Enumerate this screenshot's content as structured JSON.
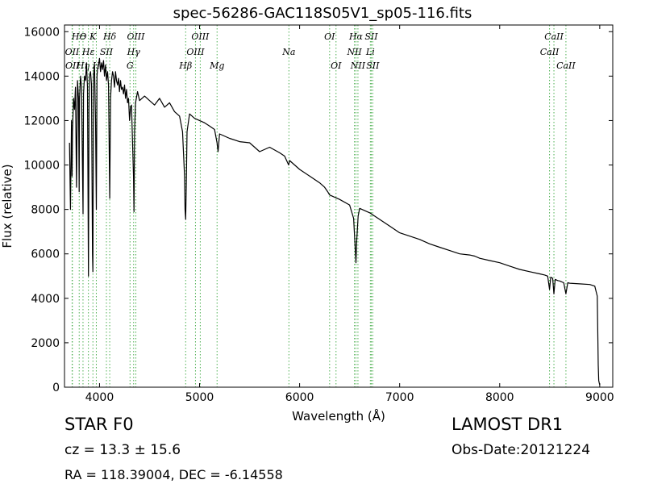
{
  "chart_data": {
    "type": "line",
    "title": "spec-56286-GAC118S05V1_sp05-116.fits",
    "xlabel": "Wavelength (Å)",
    "ylabel": "Flux (relative)",
    "xlim": [
      3650,
      9130
    ],
    "ylim": [
      0,
      16300
    ],
    "xticks": [
      4000,
      5000,
      6000,
      7000,
      8000,
      9000
    ],
    "yticks": [
      0,
      2000,
      4000,
      6000,
      8000,
      10000,
      12000,
      14000,
      16000
    ],
    "grid": false,
    "line_color": "#000000",
    "marker_line_color": "#4caf50",
    "series": [
      {
        "x": [
          3700,
          3710,
          3720,
          3726,
          3730,
          3740,
          3750,
          3760,
          3770,
          3780,
          3790,
          3797,
          3800,
          3810,
          3820,
          3835,
          3840,
          3850,
          3860,
          3870,
          3880,
          3889,
          3895,
          3900,
          3910,
          3920,
          3930,
          3934,
          3940,
          3950,
          3960,
          3968,
          3975,
          3980,
          3990,
          4000,
          4010,
          4020,
          4030,
          4040,
          4050,
          4060,
          4070,
          4080,
          4090,
          4102,
          4110,
          4120,
          4130,
          4140,
          4150,
          4160,
          4170,
          4180,
          4190,
          4200,
          4210,
          4220,
          4230,
          4240,
          4250,
          4260,
          4270,
          4280,
          4290,
          4300,
          4310,
          4320,
          4330,
          4340,
          4345,
          4350,
          4360,
          4380,
          4400,
          4450,
          4500,
          4550,
          4600,
          4650,
          4700,
          4750,
          4800,
          4830,
          4850,
          4855,
          4861,
          4867,
          4875,
          4900,
          4950,
          5000,
          5050,
          5100,
          5150,
          5175,
          5185,
          5200,
          5300,
          5400,
          5500,
          5600,
          5700,
          5800,
          5850,
          5890,
          5900,
          5950,
          6000,
          6100,
          6200,
          6250,
          6280,
          6300,
          6400,
          6500,
          6540,
          6555,
          6563,
          6570,
          6585,
          6600,
          6700,
          6800,
          6900,
          7000,
          7100,
          7200,
          7300,
          7400,
          7500,
          7600,
          7700,
          7750,
          7800,
          7900,
          8000,
          8100,
          8200,
          8300,
          8400,
          8450,
          8480,
          8498,
          8510,
          8530,
          8542,
          8555,
          8580,
          8600,
          8640,
          8662,
          8680,
          8700,
          8800,
          8900,
          8950,
          8975,
          8985,
          8990,
          8995,
          9000
        ],
        "y": [
          11000,
          8000,
          12000,
          9500,
          11500,
          13000,
          12500,
          13500,
          9000,
          13800,
          13000,
          8800,
          13000,
          14000,
          13500,
          7800,
          13200,
          14000,
          13800,
          14600,
          13500,
          5000,
          12500,
          14000,
          14200,
          13600,
          6000,
          5200,
          14000,
          14500,
          12000,
          8000,
          14000,
          14300,
          14500,
          14800,
          14200,
          14600,
          14300,
          14700,
          14000,
          14500,
          13800,
          14200,
          13600,
          8500,
          13000,
          13800,
          14200,
          14000,
          13500,
          14200,
          13800,
          13600,
          13900,
          13300,
          13800,
          13400,
          13500,
          13200,
          13600,
          13000,
          13400,
          12800,
          13000,
          12000,
          12600,
          12700,
          11000,
          9500,
          7900,
          11500,
          12800,
          13300,
          12900,
          13100,
          12900,
          12700,
          13000,
          12600,
          12800,
          12400,
          12200,
          11500,
          9500,
          8000,
          7550,
          9000,
          11500,
          12300,
          12100,
          12000,
          11900,
          11750,
          11600,
          11000,
          10600,
          11400,
          11200,
          11050,
          11000,
          10600,
          10800,
          10550,
          10400,
          10000,
          10200,
          10000,
          9800,
          9500,
          9200,
          9000,
          8800,
          8650,
          8450,
          8200,
          7600,
          6300,
          5600,
          6500,
          7700,
          8050,
          7850,
          7550,
          7250,
          6950,
          6800,
          6650,
          6450,
          6300,
          6150,
          6000,
          5950,
          5900,
          5800,
          5700,
          5600,
          5450,
          5300,
          5200,
          5100,
          5050,
          5000,
          4400,
          4950,
          4900,
          4200,
          4850,
          4800,
          4780,
          4700,
          4200,
          4700,
          4680,
          4650,
          4620,
          4550,
          4100,
          1000,
          300,
          200,
          100
        ]
      }
    ],
    "line_markers": [
      {
        "label": "HΘ",
        "x": 3797,
        "row": "top"
      },
      {
        "label": "OII",
        "x": 3726,
        "row": "mid"
      },
      {
        "label": "OII",
        "x": 3729,
        "row": "low"
      },
      {
        "label": "Hη",
        "x": 3835,
        "row": "low"
      },
      {
        "label": "K",
        "x": 3934,
        "row": "top"
      },
      {
        "label": "Hε",
        "x": 3889,
        "row": "mid"
      },
      {
        "label": "H",
        "x": 3968,
        "row": "low"
      },
      {
        "label": "SII",
        "x": 4069,
        "row": "mid"
      },
      {
        "label": "Hδ",
        "x": 4102,
        "row": "top"
      },
      {
        "label": "OIII",
        "x": 4363,
        "row": "top"
      },
      {
        "label": "Hγ",
        "x": 4341,
        "row": "mid"
      },
      {
        "label": "G",
        "x": 4305,
        "row": "low"
      },
      {
        "label": "OIII",
        "x": 5007,
        "row": "top"
      },
      {
        "label": "OIII",
        "x": 4959,
        "row": "mid"
      },
      {
        "label": "Hβ",
        "x": 4861,
        "row": "low"
      },
      {
        "label": "Mg",
        "x": 5175,
        "row": "low"
      },
      {
        "label": "Na",
        "x": 5893,
        "row": "mid"
      },
      {
        "label": "OI",
        "x": 6300,
        "row": "top"
      },
      {
        "label": "OI",
        "x": 6364,
        "row": "low"
      },
      {
        "label": "Hα",
        "x": 6563,
        "row": "top"
      },
      {
        "label": "SII",
        "x": 6716,
        "row": "top"
      },
      {
        "label": "NII",
        "x": 6548,
        "row": "mid"
      },
      {
        "label": "Li",
        "x": 6707,
        "row": "mid"
      },
      {
        "label": "NII",
        "x": 6583,
        "row": "low"
      },
      {
        "label": "SII",
        "x": 6731,
        "row": "low"
      },
      {
        "label": "CaII",
        "x": 8542,
        "row": "top"
      },
      {
        "label": "CaII",
        "x": 8498,
        "row": "mid"
      },
      {
        "label": "CaII",
        "x": 8662,
        "row": "low"
      }
    ]
  },
  "info": {
    "class_label": "STAR   F0",
    "redshift": "cz = 13.3  ± 15.6",
    "coords": "RA = 118.39004, DEC = -6.14558",
    "survey": "LAMOST DR1",
    "obs_date": "Obs-Date:20121224"
  }
}
